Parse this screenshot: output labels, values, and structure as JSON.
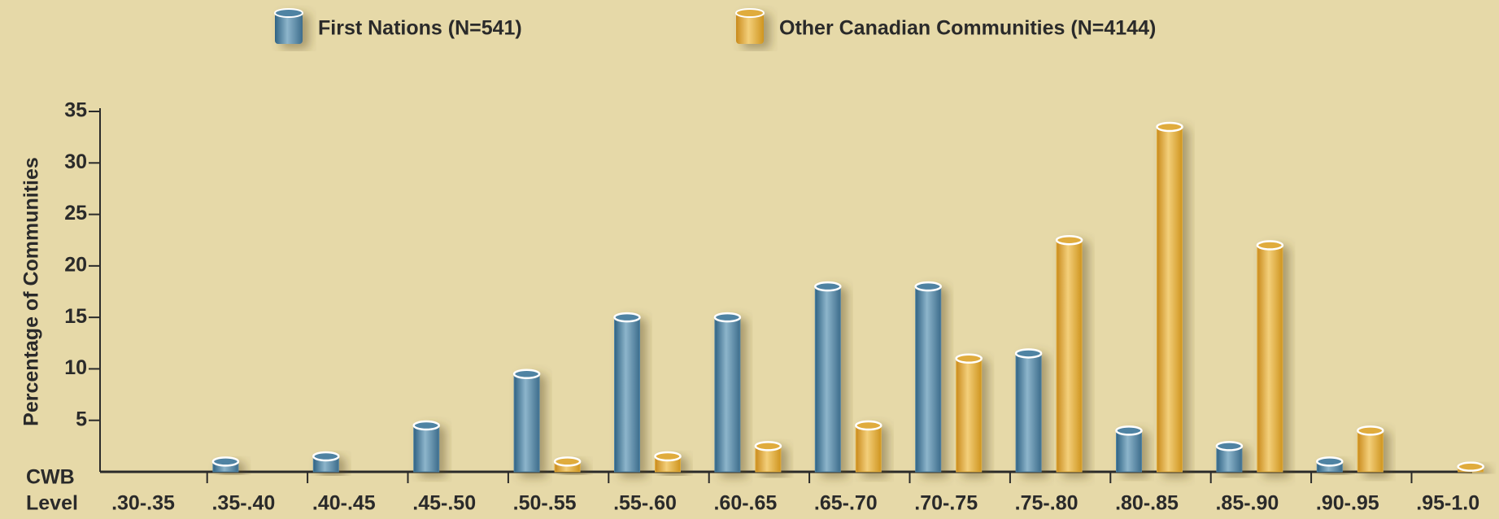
{
  "chart_data": {
    "type": "bar",
    "categories": [
      ".30-.35",
      ".35-.40",
      ".40-.45",
      ".45-.50",
      ".50-.55",
      ".55-.60",
      ".60-.65",
      ".65-.70",
      ".70-.75",
      ".75-.80",
      ".80-.85",
      ".85-.90",
      ".90-.95",
      ".95-1.0"
    ],
    "series": [
      {
        "name": "First Nations (N=541)",
        "color": "#4f83a3",
        "values": [
          0,
          1,
          1.5,
          4.5,
          9.5,
          15,
          15,
          18,
          18,
          11.5,
          4,
          2.5,
          1,
          0
        ]
      },
      {
        "name": "Other Canadian Communities (N=4144)",
        "color": "#e0ac3c",
        "values": [
          0,
          0,
          0,
          0,
          1,
          1.5,
          2.5,
          4.5,
          11,
          22.5,
          33.5,
          22,
          4,
          0.5
        ]
      }
    ],
    "ylabel": "Percentage of Communities",
    "xlabel": [
      "CWB",
      "Level"
    ],
    "ylim": [
      0,
      35
    ],
    "yticks": [
      5,
      10,
      15,
      20,
      25,
      30,
      35
    ],
    "grid": false,
    "legend": "top"
  }
}
